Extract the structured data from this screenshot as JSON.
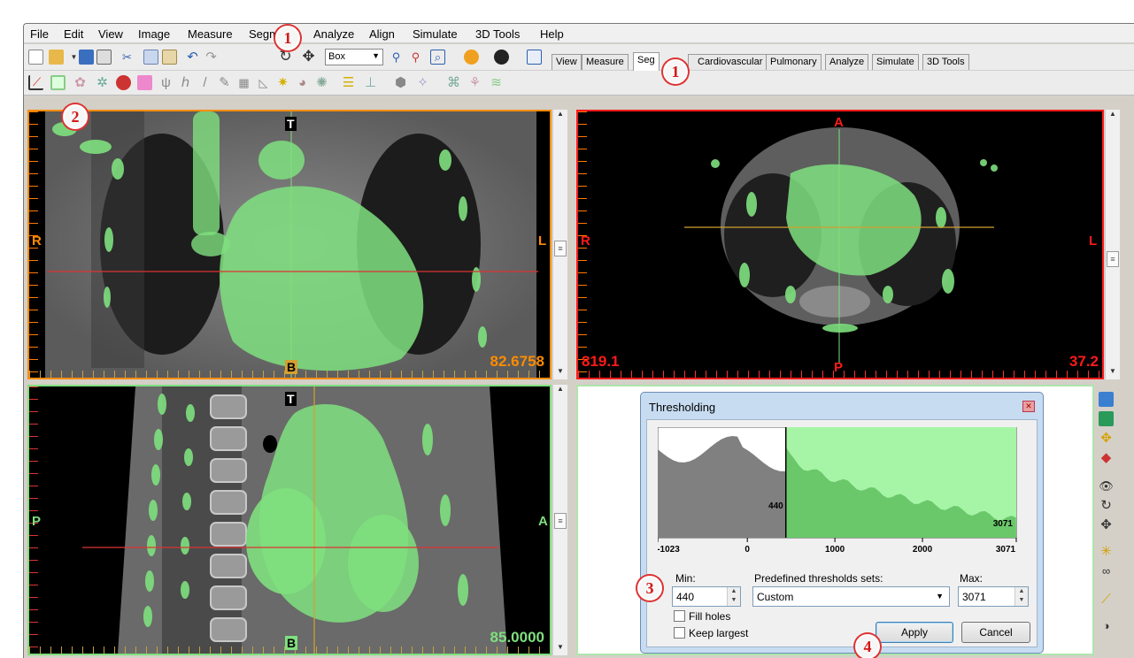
{
  "menu": [
    "File",
    "Edit",
    "View",
    "Image",
    "Measure",
    "Segm",
    "Analyze",
    "Align",
    "Simulate",
    "3D Tools",
    "Help"
  ],
  "toolbar": {
    "interaction_select": "Box"
  },
  "tabs": [
    "View",
    "Measure",
    "Seg",
    "Cardiovascular",
    "Pulmonary",
    "Analyze",
    "Simulate",
    "3D Tools"
  ],
  "active_tab": "Seg",
  "annotations": {
    "a1": "1",
    "a2": "1",
    "a3": "2",
    "a4": "3",
    "a5": "4"
  },
  "viewports": {
    "coronal": {
      "top": "T",
      "bottom": "B",
      "left": "R",
      "right": "L",
      "value": "82.6758",
      "border_color": "#ff8c00"
    },
    "axial": {
      "top": "A",
      "bottom": "P",
      "left": "R",
      "right": "L",
      "value_left": "819.1",
      "value_right": "37.2",
      "border_color": "#ff1a1a"
    },
    "sagittal": {
      "top": "T",
      "bottom": "B",
      "left": "P",
      "right": "A",
      "value": "85.0000",
      "border_color": "#7fdf7f"
    }
  },
  "threshold_dialog": {
    "title": "Thresholding",
    "histogram": {
      "threshold_low": 440,
      "threshold_high": 3071,
      "axis_min": -1023,
      "axis_max": 3071,
      "ticks": [
        "-1023",
        "0",
        "1000",
        "2000",
        "3071"
      ],
      "low_label": "440",
      "high_label": "3071"
    },
    "min_label": "Min:",
    "min_value": "440",
    "preset_label": "Predefined thresholds sets:",
    "preset_value": "Custom",
    "max_label": "Max:",
    "max_value": "3071",
    "fill_holes": "Fill holes",
    "keep_largest": "Keep largest",
    "apply": "Apply",
    "cancel": "Cancel"
  },
  "colors": {
    "segmentation": "#7fe07f",
    "accent_annotation": "#d31818"
  }
}
